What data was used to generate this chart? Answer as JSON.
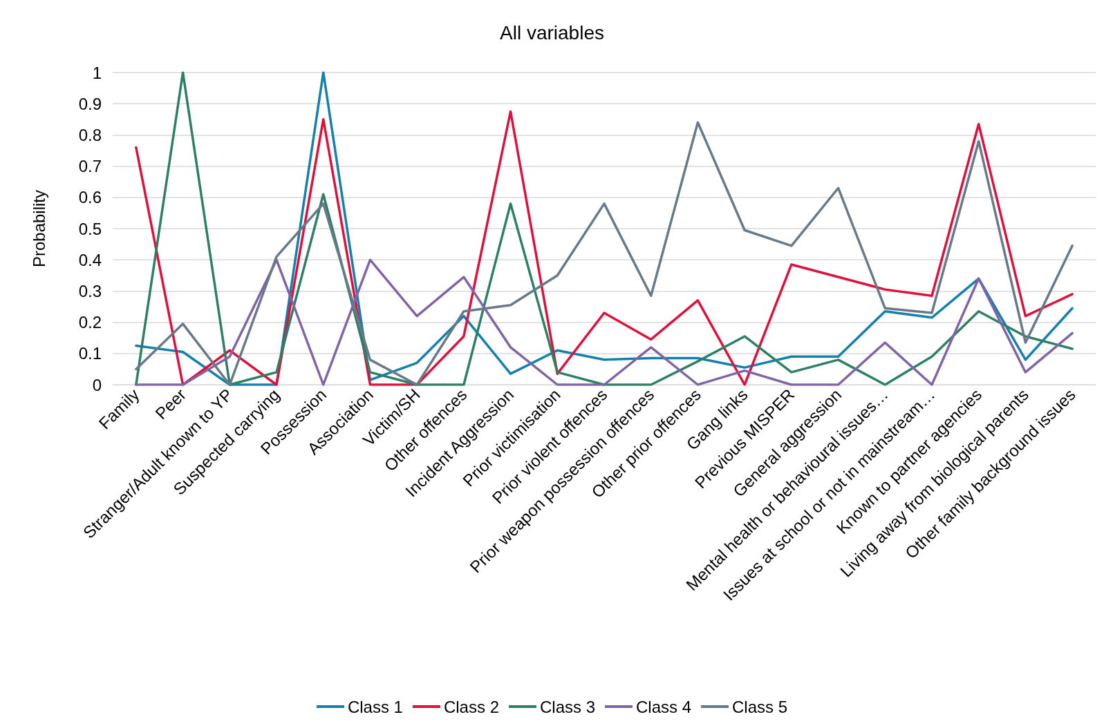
{
  "chart_data": {
    "type": "line",
    "title": "All variables",
    "ylabel": "Probability",
    "categories": [
      "Family",
      "Peer",
      "Stranger/Adult known to YP",
      "Suspected carrying",
      "Possession",
      "Association",
      "Victim/SH",
      "Other offences",
      "Incident Aggression",
      "Prior victimisation",
      "Prior violent offences",
      "Prior weapon possession offences",
      "Other prior offences",
      "Gang links",
      "Previous MISPER",
      "General aggression",
      "Mental health or behavioural issues…",
      "Issues at school or not in mainstream…",
      "Known to partner agencies",
      "Living away from biological parents",
      "Other family background issues"
    ],
    "series": [
      {
        "name": "Class 1",
        "color": "#1380ad",
        "values": [
          0.125,
          0.105,
          0,
          0,
          1,
          0.015,
          0.07,
          0.22,
          0.035,
          0.11,
          0.08,
          0.085,
          0.085,
          0.055,
          0.09,
          0.09,
          0.235,
          0.215,
          0.34,
          0.08,
          0.245
        ]
      },
      {
        "name": "Class 2",
        "color": "#e0103c",
        "values": [
          0.76,
          0,
          0.11,
          0,
          0.85,
          0,
          0,
          0.155,
          0.875,
          0.035,
          0.23,
          0.145,
          0.27,
          0,
          0.385,
          0.345,
          0.305,
          0.285,
          0.835,
          0.22,
          0.29
        ]
      },
      {
        "name": "Class 3",
        "color": "#2e8065",
        "values": [
          0,
          1,
          0,
          0.04,
          0.61,
          0.04,
          0,
          0,
          0.58,
          0.04,
          0,
          0,
          0.075,
          0.155,
          0.04,
          0.08,
          0,
          0.09,
          0.235,
          0.155,
          0.115
        ]
      },
      {
        "name": "Class 4",
        "color": "#8064a8",
        "values": [
          0,
          0,
          0.09,
          0.4,
          0,
          0.4,
          0.22,
          0.345,
          0.12,
          0,
          0,
          0.12,
          0,
          0.045,
          0,
          0,
          0.135,
          0,
          0.34,
          0.04,
          0.165
        ]
      },
      {
        "name": "Class 5",
        "color": "#687987",
        "values": [
          0.05,
          0.195,
          0,
          0.41,
          0.58,
          0.08,
          0,
          0.235,
          0.255,
          0.35,
          0.58,
          0.285,
          0.84,
          0.495,
          0.445,
          0.63,
          0.245,
          0.23,
          0.78,
          0.135,
          0.445
        ]
      }
    ],
    "ylim": [
      0,
      1
    ],
    "yticks": [
      0,
      0.1,
      0.2,
      0.3,
      0.4,
      0.5,
      0.6,
      0.7,
      0.8,
      0.9,
      1
    ],
    "grid": "y",
    "legend": "bottom",
    "marker": "none",
    "line_style": "solid"
  }
}
